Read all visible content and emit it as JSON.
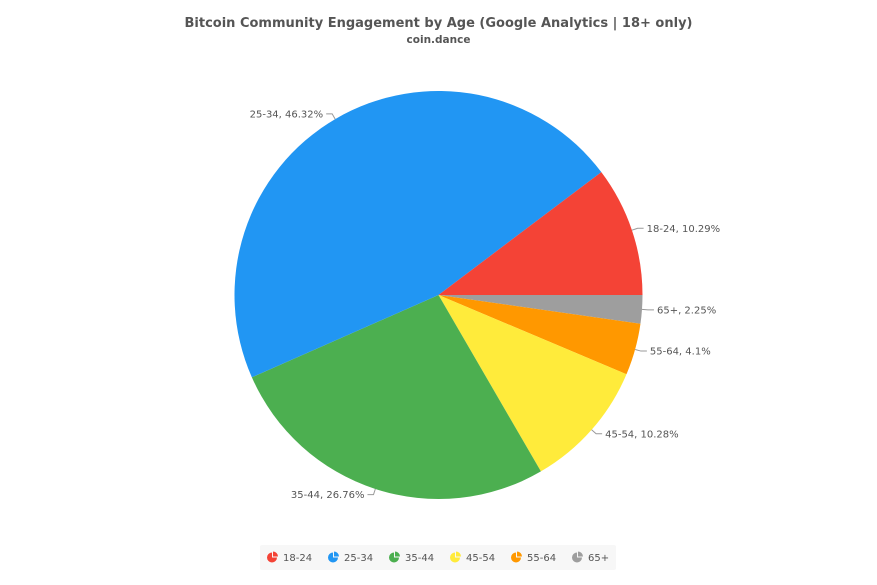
{
  "chart_data": {
    "type": "pie",
    "title": "Bitcoin Community Engagement by Age (Google Analytics | 18+ only)",
    "subtitle": "coin.dance",
    "categories": [
      "18-24",
      "25-34",
      "35-44",
      "45-54",
      "55-64",
      "65+"
    ],
    "values": [
      10.29,
      46.32,
      26.76,
      10.28,
      4.1,
      2.25
    ],
    "labels": [
      "18-24, 10.29%",
      "25-34, 46.32%",
      "35-44, 26.76%",
      "45-54, 10.28%",
      "55-64, 4.1%",
      "65+, 2.25%"
    ],
    "colors": [
      "#f44336",
      "#2196f3",
      "#4caf50",
      "#ffeb3b",
      "#ff9800",
      "#9e9e9e"
    ],
    "legend": {
      "position": "bottom",
      "icon": "pie-icon"
    }
  }
}
